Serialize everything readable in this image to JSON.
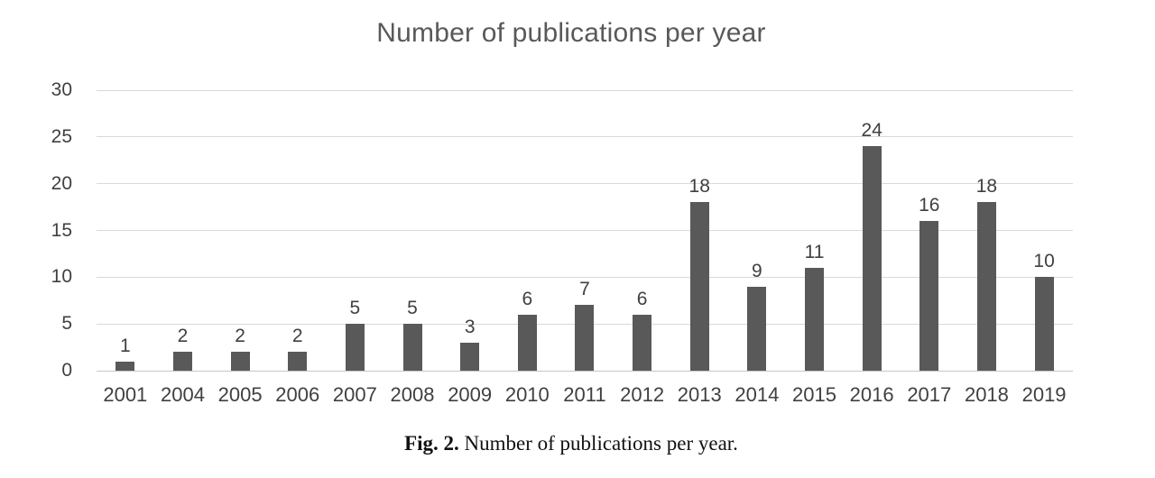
{
  "chart_data": {
    "type": "bar",
    "title": "Number of publications per year",
    "categories": [
      "2001",
      "2004",
      "2005",
      "2006",
      "2007",
      "2008",
      "2009",
      "2010",
      "2011",
      "2012",
      "2013",
      "2014",
      "2015",
      "2016",
      "2017",
      "2018",
      "2019"
    ],
    "values": [
      1,
      2,
      2,
      2,
      5,
      5,
      3,
      6,
      7,
      6,
      18,
      9,
      11,
      24,
      16,
      18,
      10
    ],
    "xlabel": "",
    "ylabel": "",
    "ylim": [
      0,
      30
    ],
    "yticks": [
      0,
      5,
      10,
      15,
      20,
      25,
      30
    ],
    "grid": true,
    "legend": false,
    "bar_color": "#595959",
    "gridline_color": "#d9d9d9",
    "label_color": "#404040",
    "title_color": "#595959"
  },
  "caption": {
    "label": "Fig. 2.",
    "text": "Number of publications per year."
  }
}
